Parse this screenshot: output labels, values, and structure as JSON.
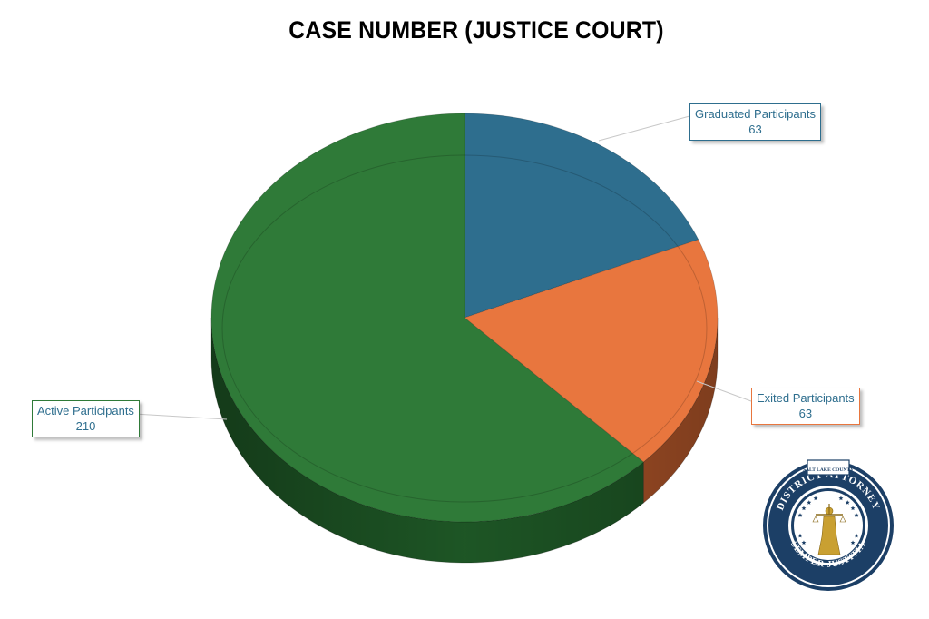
{
  "chart_data": {
    "type": "pie",
    "title": "CASE NUMBER (JUSTICE COURT)",
    "slices": [
      {
        "label": "Graduated Participants",
        "value": 63,
        "color": "#2e6e8e",
        "side_color": "#1f4e66"
      },
      {
        "label": "Exited Participants",
        "value": 63,
        "color": "#e8763e",
        "side_color": "#b4572a"
      },
      {
        "label": "Active Participants",
        "value": 210,
        "color": "#2f7a38",
        "side_color": "#1f5a27"
      }
    ],
    "legend": "none",
    "data_labels": "callouts"
  },
  "seal": {
    "top_text": "SALT LAKE COUNTY",
    "ring_text": "DISTRICT ATTORNEY",
    "motto": "SEMPER JUSTITIA"
  }
}
